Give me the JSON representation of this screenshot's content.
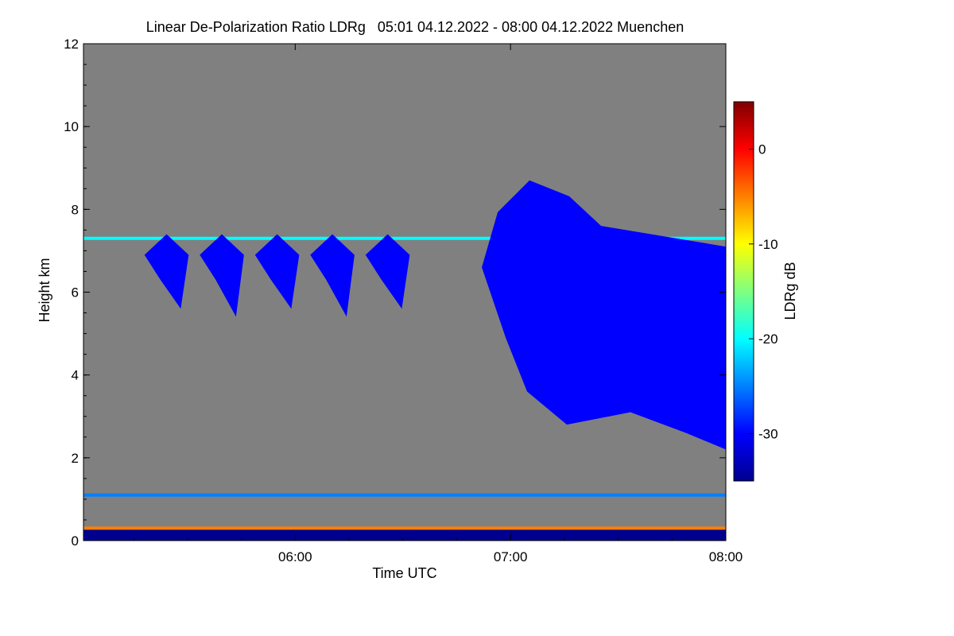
{
  "chart_data": {
    "type": "heatmap",
    "title": "Linear De-Polarization Ratio LDRg   05:01 04.12.2022 - 08:00 04.12.2022 Muenchen",
    "xlabel": "Time UTC",
    "ylabel": "Height km",
    "xlim": [
      "05:01",
      "08:00"
    ],
    "ylim": [
      0,
      12
    ],
    "x_ticks": [
      "06:00",
      "07:00",
      "08:00"
    ],
    "y_ticks": [
      0,
      2,
      4,
      6,
      8,
      10,
      12
    ],
    "colorbar": {
      "label": "LDRg dB",
      "range": [
        -35,
        5
      ],
      "ticks": [
        0,
        -10,
        -20,
        -30
      ],
      "colors": [
        "#00008f",
        "#0000ff",
        "#0080ff",
        "#00ffff",
        "#80ff80",
        "#ffff00",
        "#ff8000",
        "#ff0000",
        "#800000"
      ]
    },
    "background_color": "#808080",
    "features": [
      {
        "name": "thin layer",
        "time": [
          "05:01",
          "08:00"
        ],
        "height_km": 7.3,
        "ldr_db": -22
      },
      {
        "name": "cirrus streaks",
        "time": [
          "05:18",
          "06:35"
        ],
        "height_km": [
          5.6,
          7.4
        ],
        "ldr_db": -28
      },
      {
        "name": "thick cloud",
        "time": [
          "06:52",
          "08:00"
        ],
        "height_km": [
          2.2,
          8.7
        ],
        "ldr_db": -32
      },
      {
        "name": "layer",
        "time": [
          "05:01",
          "08:00"
        ],
        "height_km": 1.1,
        "ldr_db": -24
      },
      {
        "name": "surface band",
        "time": [
          "05:01",
          "08:00"
        ],
        "height_km": [
          0.0,
          0.3
        ],
        "ldr_db": -34
      },
      {
        "name": "near-surface line",
        "time": [
          "05:01",
          "08:00"
        ],
        "height_km": 0.3,
        "ldr_db": -5
      }
    ]
  }
}
